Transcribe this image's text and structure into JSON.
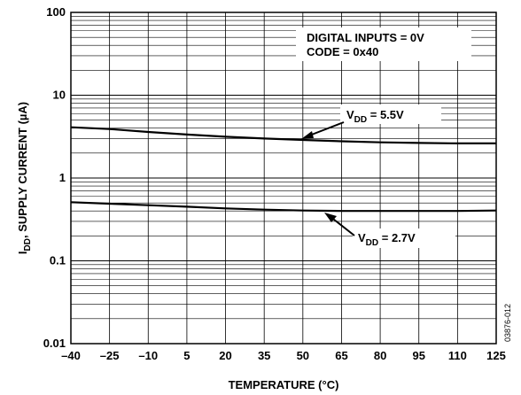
{
  "chart_data": {
    "type": "line",
    "xlabel": "TEMPERATURE (°C)",
    "ylabel": "I_DD, SUPPLY CURRENT (µA)",
    "xlim": [
      -40,
      125
    ],
    "ylim": [
      0.01,
      100
    ],
    "y_scale": "log",
    "grid": true,
    "x_ticks": [
      -40,
      -25,
      -10,
      5,
      20,
      35,
      50,
      65,
      80,
      95,
      110,
      125
    ],
    "x_tick_labels": [
      "–40",
      "–25",
      "–10",
      "5",
      "20",
      "35",
      "50",
      "65",
      "80",
      "95",
      "110",
      "125"
    ],
    "y_ticks": [
      0.01,
      0.1,
      1,
      10,
      100
    ],
    "y_tick_labels": [
      "0.01",
      "0.1",
      "1",
      "10",
      "100"
    ],
    "conditions": [
      "DIGITAL INPUTS = 0V",
      "CODE = 0x40"
    ],
    "series": [
      {
        "name": "V_DD = 5.5V",
        "x": [
          -40,
          -25,
          -10,
          5,
          20,
          35,
          50,
          65,
          80,
          95,
          110,
          125
        ],
        "y": [
          4.1,
          3.9,
          3.6,
          3.35,
          3.15,
          3.0,
          2.88,
          2.78,
          2.7,
          2.65,
          2.62,
          2.62
        ]
      },
      {
        "name": "V_DD = 2.7V",
        "x": [
          -40,
          -25,
          -10,
          5,
          20,
          35,
          50,
          65,
          80,
          95,
          110,
          125
        ],
        "y": [
          0.51,
          0.49,
          0.47,
          0.45,
          0.43,
          0.415,
          0.405,
          0.4,
          0.4,
          0.4,
          0.4,
          0.405
        ]
      }
    ],
    "annotations": {
      "v55_main": "V",
      "v55_sub": "DD",
      "v55_rest": " = 5.5V",
      "v27_main": "V",
      "v27_sub": "DD",
      "v27_rest": " = 2.7V"
    },
    "figure_id": "03876-012",
    "line_color": "#000000"
  }
}
